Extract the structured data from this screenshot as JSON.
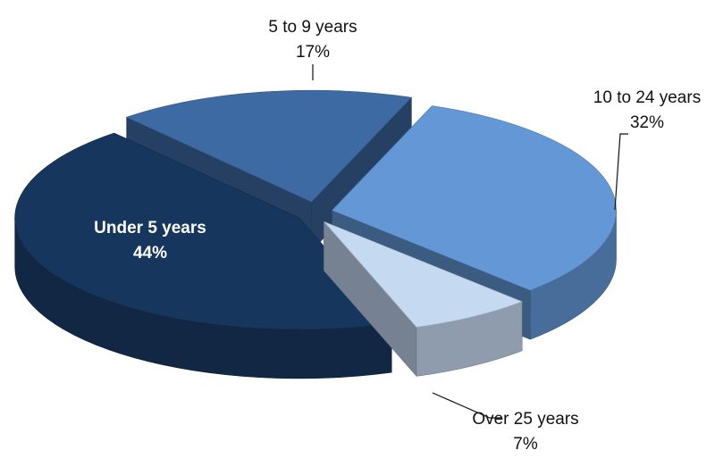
{
  "chart_data": {
    "type": "pie3d",
    "categories": [
      "Under 5 years",
      "5 to 9 years",
      "10 to 24 years",
      "Over 25 years"
    ],
    "values": [
      44,
      17,
      32,
      7
    ],
    "value_labels": [
      "44%",
      "17%",
      "32%",
      "7%"
    ],
    "colors": [
      "#17365d",
      "#3d6aa3",
      "#6497d6",
      "#c5d9f1"
    ]
  }
}
